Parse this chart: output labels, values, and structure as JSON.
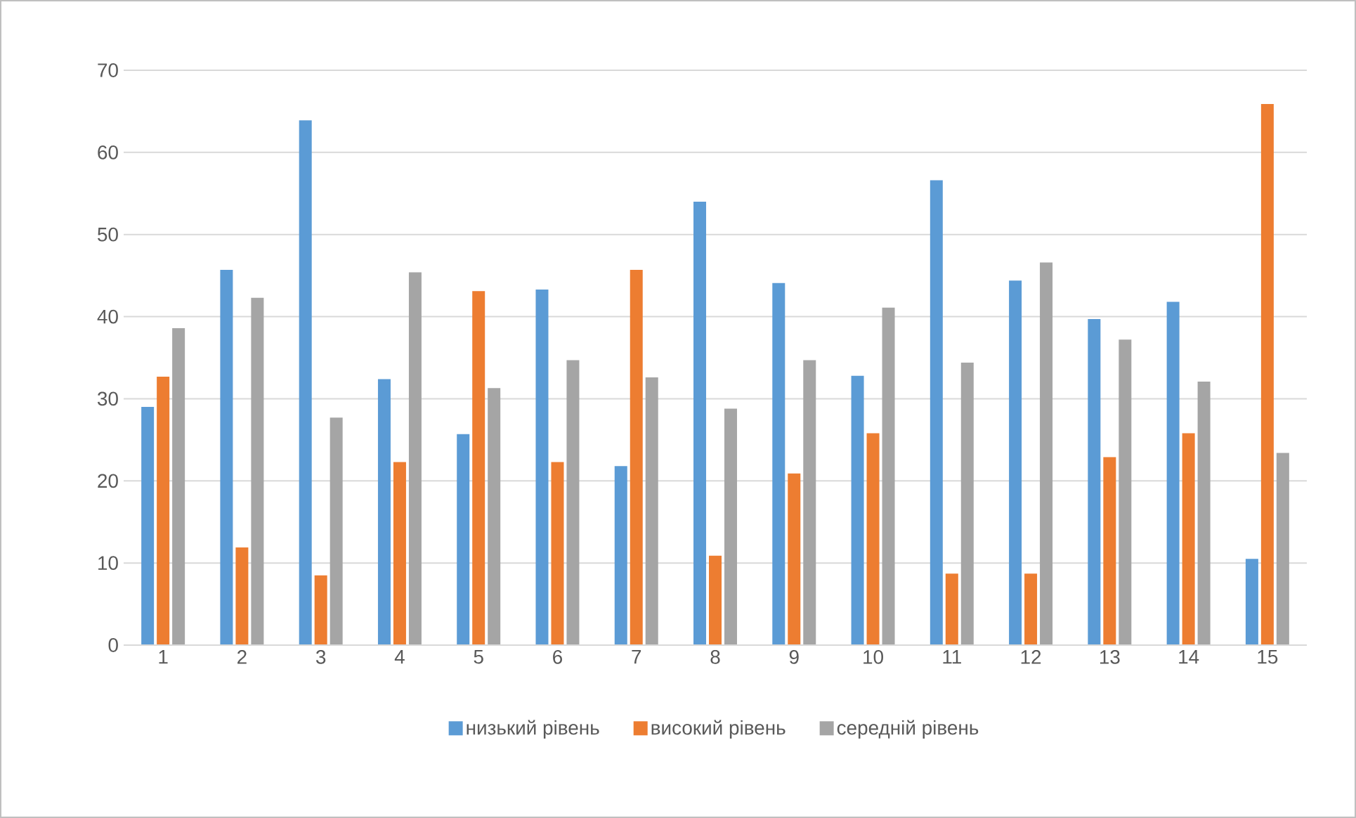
{
  "chart_data": {
    "type": "bar",
    "categories": [
      "1",
      "2",
      "3",
      "4",
      "5",
      "6",
      "7",
      "8",
      "9",
      "10",
      "11",
      "12",
      "13",
      "14",
      "15"
    ],
    "series": [
      {
        "name": "низький рівень",
        "color": "#5b9bd5",
        "values": [
          29,
          45.7,
          63.9,
          32.4,
          25.7,
          43.3,
          21.8,
          54,
          44.1,
          32.8,
          56.6,
          44.4,
          39.7,
          41.8,
          10.5
        ]
      },
      {
        "name": "високий рівень",
        "color": "#ed7d31",
        "values": [
          32.7,
          11.9,
          8.5,
          22.3,
          43.1,
          22.3,
          45.7,
          10.9,
          20.9,
          25.8,
          8.7,
          8.7,
          22.9,
          25.8,
          65.9
        ]
      },
      {
        "name": "середній рівень",
        "color": "#a5a5a5",
        "values": [
          38.6,
          42.3,
          27.7,
          45.4,
          31.3,
          34.7,
          32.6,
          28.8,
          34.7,
          41.1,
          34.4,
          46.6,
          37.2,
          32.1,
          23.4
        ]
      }
    ],
    "ylim": [
      0,
      70
    ],
    "yticks": [
      0,
      10,
      20,
      30,
      40,
      50,
      60,
      70
    ],
    "grid": "y",
    "legend": "bottom"
  }
}
